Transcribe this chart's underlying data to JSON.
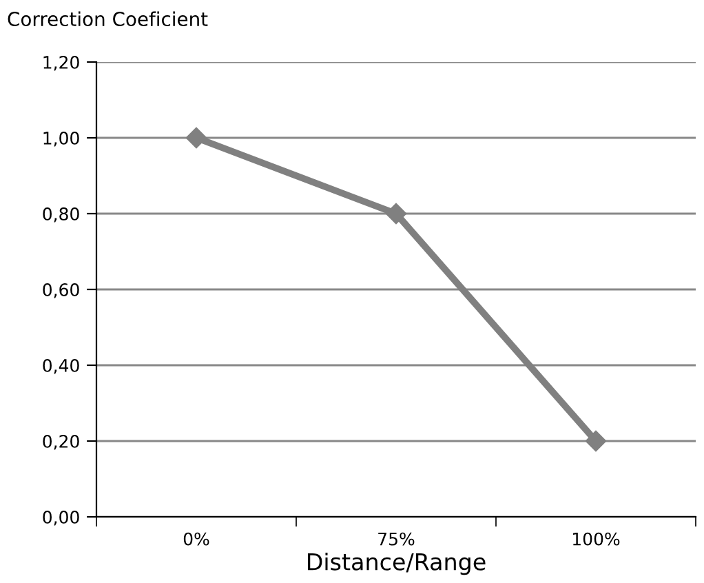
{
  "chart_data": {
    "type": "line",
    "ylabel": "Correction Coeficient",
    "xlabel": "Distance/Range",
    "categories": [
      "0%",
      "75%",
      "100%"
    ],
    "series": [
      {
        "color": "#808080",
        "values": [
          1.0,
          0.8,
          0.2
        ]
      }
    ],
    "ylim": [
      0,
      1.2
    ],
    "yticks": [
      {
        "value": 0,
        "label": "0,00"
      },
      {
        "value": 0.2,
        "label": "0,20"
      },
      {
        "value": 0.4,
        "label": "0,40"
      },
      {
        "value": 0.6,
        "label": "0,60"
      },
      {
        "value": 0.8,
        "label": "0,80"
      },
      {
        "value": 1.0,
        "label": "1,00"
      },
      {
        "value": 1.2,
        "label": "1,20"
      }
    ],
    "grid": "y",
    "marker": "diamond",
    "line_style": "solid",
    "legend": false
  }
}
